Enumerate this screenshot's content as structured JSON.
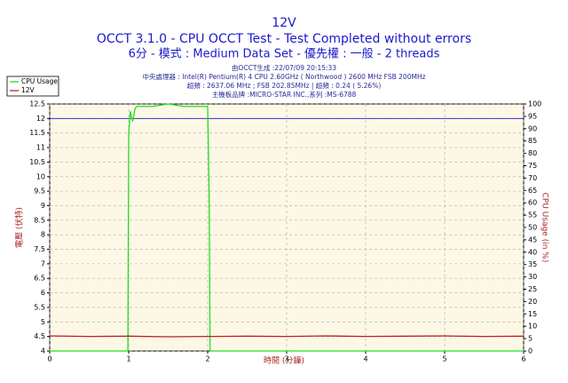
{
  "chart_data": {
    "type": "line",
    "title": "12V",
    "subtitle": "OCCT 3.1.0 - CPU OCCT Test - Test Completed without errors",
    "subtitle2": "6分 - 模式 : Medium Data Set - 優先權 : 一般 - 2 threads",
    "info": [
      "由OCCT生成 :22/07/09 20:15:33",
      "中央處理器 : Intel(R) Pentium(R) 4 CPU 2.60GHz ( Northwood ) 2600 MHz FSB 200MHz",
      "超頻 : 2637.06 MHz ; FSB 202.85MHz | 超頻 : 0.24 ( 5.26%)",
      "主機板品牌 :MICRO-STAR INC.,系列 :MS-6788"
    ],
    "xlabel": "時間 (分鐘)",
    "ylabel": "電壓 (伏特)",
    "y2label": "CPU Usage (in %)",
    "xlim": [
      0,
      6
    ],
    "xticks": [
      0,
      1,
      2,
      3,
      4,
      5,
      6
    ],
    "ylim": [
      4,
      12.5
    ],
    "yticks": [
      4,
      4.5,
      5,
      5.5,
      6,
      6.5,
      7,
      7.5,
      8,
      8.5,
      9,
      9.5,
      10,
      10.5,
      11,
      11.5,
      12,
      12.5
    ],
    "y2lim": [
      0,
      100
    ],
    "y2ticks": [
      0,
      5,
      10,
      15,
      20,
      25,
      30,
      35,
      40,
      45,
      50,
      55,
      60,
      65,
      70,
      75,
      80,
      85,
      90,
      95,
      100
    ],
    "reference_line": 12,
    "reference_color": "#3333cc",
    "grid": true,
    "series": [
      {
        "name": "CPU Usage",
        "color": "#22dd22",
        "axis": "y2",
        "x": [
          0,
          0.5,
          0.99,
          1.0,
          1.02,
          1.05,
          1.08,
          1.1,
          1.3,
          1.5,
          1.7,
          1.9,
          2.0,
          2.02,
          2.03,
          2.5,
          3,
          4,
          5,
          6
        ],
        "values": [
          0,
          0,
          0,
          88,
          97,
          93,
          98,
          99,
          99,
          100,
          99,
          99,
          99,
          60,
          0,
          0,
          0,
          0,
          0,
          0
        ]
      },
      {
        "name": "12V",
        "color": "#bb2222",
        "axis": "y",
        "x": [
          0,
          0.5,
          1,
          1.5,
          2,
          2.5,
          3,
          3.5,
          4,
          4.5,
          5,
          5.5,
          6
        ],
        "values": [
          4.52,
          4.5,
          4.51,
          4.49,
          4.5,
          4.51,
          4.5,
          4.52,
          4.5,
          4.51,
          4.52,
          4.5,
          4.51
        ]
      }
    ]
  }
}
